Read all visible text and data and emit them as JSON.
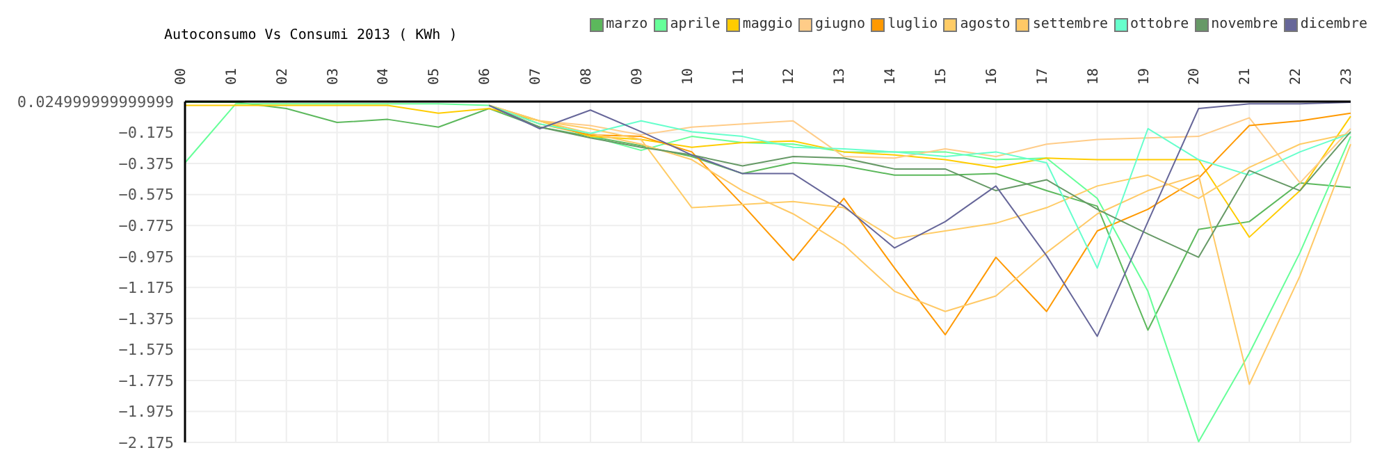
{
  "chart_data": {
    "type": "line",
    "title": "Autoconsumo Vs Consumi 2013 ( KWh )",
    "categories": [
      "00",
      "01",
      "02",
      "03",
      "04",
      "05",
      "06",
      "07",
      "08",
      "09",
      "10",
      "11",
      "12",
      "13",
      "14",
      "15",
      "16",
      "17",
      "18",
      "19",
      "20",
      "21",
      "22",
      "23"
    ],
    "series": [
      {
        "name": "marzo",
        "color": "#5cb85c",
        "values": [
          0.02,
          0.02,
          -0.02,
          -0.11,
          -0.09,
          -0.14,
          -0.02,
          -0.14,
          -0.2,
          -0.26,
          -0.33,
          -0.44,
          -0.37,
          -0.39,
          -0.45,
          -0.45,
          -0.44,
          -0.55,
          -0.65,
          -1.45,
          -0.8,
          -0.75,
          -0.5,
          -0.53
        ]
      },
      {
        "name": "aprile",
        "color": "#66ff99",
        "values": [
          -0.37,
          0.01,
          0.01,
          0.01,
          0.01,
          0.01,
          0.0,
          -0.1,
          -0.2,
          -0.29,
          -0.2,
          -0.24,
          -0.25,
          -0.3,
          -0.3,
          -0.3,
          -0.35,
          -0.34,
          -0.6,
          -1.2,
          -2.17,
          -1.6,
          -0.95,
          -0.2
        ]
      },
      {
        "name": "maggio",
        "color": "#ffcc00",
        "values": [
          0.0,
          0.0,
          0.0,
          0.0,
          0.0,
          -0.05,
          -0.02,
          -0.1,
          -0.2,
          -0.22,
          -0.27,
          -0.24,
          -0.23,
          -0.3,
          -0.32,
          -0.35,
          -0.4,
          -0.34,
          -0.35,
          -0.35,
          -0.35,
          -0.85,
          -0.55,
          -0.07
        ]
      },
      {
        "name": "giugno",
        "color": "#ffcc88",
        "values": [
          null,
          null,
          null,
          null,
          null,
          null,
          0.0,
          -0.1,
          -0.13,
          -0.19,
          -0.14,
          -0.12,
          -0.1,
          -0.33,
          -0.34,
          -0.28,
          -0.33,
          -0.25,
          -0.22,
          -0.21,
          -0.2,
          -0.08,
          -0.5,
          -0.15
        ]
      },
      {
        "name": "luglio",
        "color": "#ff9900",
        "values": [
          null,
          null,
          null,
          null,
          null,
          null,
          0.0,
          -0.12,
          -0.19,
          -0.2,
          -0.3,
          -0.64,
          -1.0,
          -0.6,
          -1.05,
          -1.48,
          -0.98,
          -1.33,
          -0.81,
          -0.67,
          -0.47,
          -0.13,
          -0.1,
          -0.05
        ]
      },
      {
        "name": "agosto",
        "color": "#ffcc66",
        "values": [
          null,
          null,
          null,
          null,
          null,
          null,
          0.0,
          -0.1,
          -0.15,
          -0.22,
          -0.66,
          -0.64,
          -0.62,
          -0.66,
          -0.86,
          -0.81,
          -0.76,
          -0.66,
          -0.52,
          -0.45,
          -0.6,
          -0.4,
          -0.25,
          -0.18
        ]
      },
      {
        "name": "settembre",
        "color": "#ffc966",
        "values": [
          null,
          null,
          null,
          null,
          null,
          null,
          0.0,
          -0.1,
          -0.18,
          -0.25,
          -0.35,
          -0.55,
          -0.7,
          -0.9,
          -1.2,
          -1.33,
          -1.23,
          -0.95,
          -0.7,
          -0.55,
          -0.45,
          -1.8,
          -1.1,
          -0.25
        ]
      },
      {
        "name": "ottobre",
        "color": "#66ffcc",
        "values": [
          null,
          null,
          null,
          null,
          null,
          null,
          0.0,
          -0.12,
          -0.18,
          -0.1,
          -0.17,
          -0.2,
          -0.27,
          -0.28,
          -0.3,
          -0.33,
          -0.3,
          -0.37,
          -1.05,
          -0.15,
          -0.35,
          -0.45,
          -0.3,
          -0.18
        ]
      },
      {
        "name": "novembre",
        "color": "#669966",
        "values": [
          null,
          null,
          null,
          null,
          null,
          null,
          0.0,
          -0.14,
          -0.21,
          -0.27,
          -0.32,
          -0.39,
          -0.33,
          -0.34,
          -0.41,
          -0.41,
          -0.55,
          -0.48,
          -0.67,
          -0.83,
          -0.98,
          -0.42,
          -0.55,
          -0.17
        ]
      },
      {
        "name": "dicembre",
        "color": "#666699",
        "values": [
          null,
          null,
          null,
          null,
          null,
          null,
          0.0,
          -0.15,
          -0.03,
          -0.17,
          -0.32,
          -0.44,
          -0.44,
          -0.65,
          -0.92,
          -0.75,
          -0.52,
          -0.97,
          -1.49,
          -0.75,
          -0.02,
          0.01,
          0.01,
          0.02
        ]
      }
    ],
    "ylim": [
      -2.175,
      0.025
    ],
    "yticks": [
      {
        "value": 0.025,
        "label": "0.024999999999999"
      },
      -0.175,
      -0.375,
      -0.575,
      -0.775,
      -0.975,
      -1.175,
      -1.375,
      -1.575,
      -1.775,
      -1.975,
      -2.175
    ],
    "grid": true,
    "legend": "top right",
    "marker": "none",
    "line_style": "solid"
  }
}
